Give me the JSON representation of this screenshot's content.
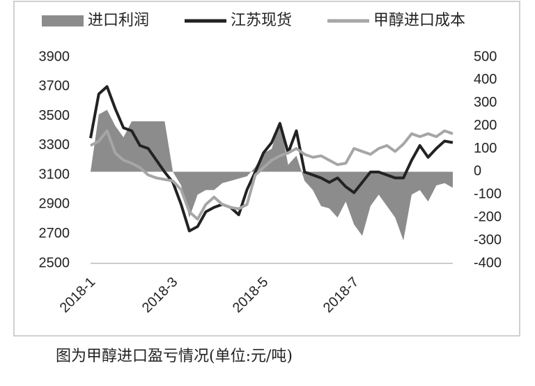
{
  "chart_data": {
    "type": "line",
    "caption": "图为甲醇进口盈亏情况(单位:元/吨)",
    "categories": [
      "2018-1",
      null,
      null,
      null,
      null,
      null,
      null,
      null,
      null,
      null,
      "2018-3",
      null,
      null,
      null,
      null,
      null,
      null,
      null,
      null,
      null,
      null,
      "2018-5",
      null,
      null,
      null,
      null,
      null,
      null,
      null,
      null,
      null,
      null,
      "2018-7",
      null,
      null,
      null,
      null,
      null,
      null,
      null,
      null,
      null,
      null,
      null,
      null
    ],
    "series": [
      {
        "name": "进口利润",
        "type": "area",
        "axis": "y2",
        "color": "#8c8c8c",
        "values": [
          0,
          250,
          270,
          200,
          150,
          220,
          220,
          220,
          220,
          220,
          0,
          -60,
          -200,
          -100,
          -80,
          -80,
          -50,
          -40,
          -30,
          -20,
          20,
          80,
          100,
          220,
          30,
          70,
          -40,
          -80,
          -150,
          -160,
          -200,
          -130,
          -230,
          -280,
          -150,
          -100,
          -150,
          -200,
          -300,
          -100,
          -80,
          -130,
          -60,
          -50,
          -70
        ]
      },
      {
        "name": "江苏现货",
        "type": "line",
        "color": "#222222",
        "values": [
          3350,
          3650,
          3700,
          3550,
          3420,
          3400,
          3300,
          3280,
          3200,
          3120,
          3050,
          2900,
          2720,
          2750,
          2850,
          2880,
          2900,
          2880,
          2830,
          3000,
          3120,
          3250,
          3320,
          3450,
          3250,
          3400,
          3120,
          3100,
          3080,
          3050,
          3080,
          3020,
          2980,
          3050,
          3120,
          3120,
          3100,
          3080,
          3080,
          3200,
          3300,
          3220,
          3280,
          3330,
          3320
        ]
      },
      {
        "name": "甲醇进口成本",
        "type": "line",
        "color": "#a6a6a6",
        "values": [
          3300,
          3330,
          3400,
          3250,
          3200,
          3180,
          3150,
          3100,
          3080,
          3070,
          3060,
          3000,
          2850,
          2800,
          2900,
          2950,
          2900,
          2880,
          2870,
          2900,
          3100,
          3150,
          3200,
          3230,
          3250,
          3280,
          3240,
          3220,
          3230,
          3200,
          3170,
          3180,
          3280,
          3260,
          3240,
          3280,
          3300,
          3260,
          3310,
          3380,
          3360,
          3380,
          3360,
          3400,
          3380
        ]
      }
    ],
    "ylim": [
      2500,
      3900
    ],
    "yticks": [
      2500,
      2700,
      2900,
      3100,
      3300,
      3500,
      3700,
      3900
    ],
    "y2lim": [
      -400,
      500
    ],
    "y2ticks": [
      -400,
      -300,
      -200,
      -100,
      0,
      100,
      200,
      300,
      400,
      500
    ],
    "legend": "top"
  }
}
